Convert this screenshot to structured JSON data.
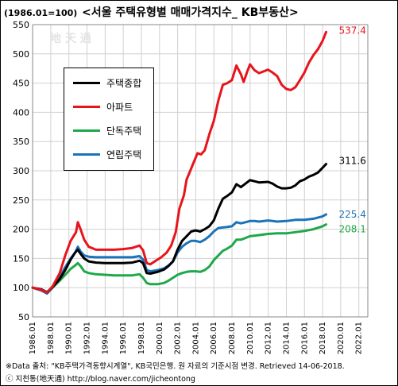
{
  "header": {
    "unit_label": "(1986.01=100)",
    "title": "<서울 주택유형별 매매가격지수_ KB부동산>"
  },
  "watermark": "地 天 通",
  "footer": {
    "source": "※Data 출처: \"KB주택가격동향시계열\", KB국민은행. 원 자료의 기준시점 변경. Retrieved 14-06-2018.",
    "author": "ⓒ 지천통(地天通) http://blog.naver.com/jicheontong"
  },
  "chart_data": {
    "type": "line",
    "title": "<서울 주택유형별 매매가격지수_ KB부동산>",
    "xlabel": "",
    "ylabel": "(1986.01=100)",
    "xlim": [
      1986.0,
      2023.0
    ],
    "ylim": [
      50,
      550
    ],
    "y_ticks": [
      50,
      100,
      150,
      200,
      250,
      300,
      350,
      400,
      450,
      500,
      550
    ],
    "x_ticks": [
      "1986.01",
      "1988.01",
      "1990.01",
      "1992.01",
      "1994.01",
      "1996.01",
      "1998.01",
      "2000.01",
      "2002.01",
      "2004.01",
      "2006.01",
      "2008.01",
      "2010.01",
      "2012.01",
      "2014.01",
      "2016.01",
      "2018.01",
      "2020.01",
      "2022.01"
    ],
    "grid": true,
    "legend_position": "upper-left",
    "series": [
      {
        "name": "주택종합",
        "color": "#000000",
        "end_label": "311.6",
        "points": [
          [
            1986.0,
            100
          ],
          [
            1987.0,
            97
          ],
          [
            1987.6,
            92
          ],
          [
            1988.2,
            101
          ],
          [
            1989.0,
            115
          ],
          [
            1989.6,
            130
          ],
          [
            1990.2,
            148
          ],
          [
            1990.7,
            160
          ],
          [
            1991.0,
            165
          ],
          [
            1991.3,
            158
          ],
          [
            1991.7,
            150
          ],
          [
            1992.2,
            145
          ],
          [
            1993.0,
            143
          ],
          [
            1994.0,
            142
          ],
          [
            1995.0,
            142
          ],
          [
            1996.0,
            142
          ],
          [
            1997.0,
            143
          ],
          [
            1997.8,
            146
          ],
          [
            1998.2,
            142
          ],
          [
            1998.6,
            125
          ],
          [
            1999.0,
            124
          ],
          [
            1999.8,
            127
          ],
          [
            2000.5,
            131
          ],
          [
            2001.0,
            137
          ],
          [
            2001.5,
            145
          ],
          [
            2002.0,
            165
          ],
          [
            2002.5,
            180
          ],
          [
            2003.0,
            188
          ],
          [
            2003.5,
            196
          ],
          [
            2004.0,
            198
          ],
          [
            2004.5,
            196
          ],
          [
            2005.0,
            200
          ],
          [
            2005.5,
            205
          ],
          [
            2006.0,
            215
          ],
          [
            2006.5,
            235
          ],
          [
            2007.0,
            252
          ],
          [
            2007.5,
            257
          ],
          [
            2008.0,
            263
          ],
          [
            2008.5,
            277
          ],
          [
            2009.0,
            272
          ],
          [
            2009.5,
            278
          ],
          [
            2010.0,
            284
          ],
          [
            2010.5,
            282
          ],
          [
            2011.0,
            280
          ],
          [
            2012.0,
            281
          ],
          [
            2012.5,
            278
          ],
          [
            2013.0,
            273
          ],
          [
            2013.5,
            270
          ],
          [
            2014.0,
            270
          ],
          [
            2014.5,
            271
          ],
          [
            2015.0,
            275
          ],
          [
            2015.5,
            282
          ],
          [
            2016.0,
            285
          ],
          [
            2016.5,
            290
          ],
          [
            2017.0,
            293
          ],
          [
            2017.5,
            297
          ],
          [
            2018.0,
            305
          ],
          [
            2018.4,
            311.6
          ]
        ]
      },
      {
        "name": "아파트",
        "color": "#e8141b",
        "end_label": "537.4",
        "points": [
          [
            1986.0,
            100
          ],
          [
            1987.0,
            96
          ],
          [
            1987.6,
            92
          ],
          [
            1988.2,
            102
          ],
          [
            1989.0,
            125
          ],
          [
            1989.6,
            155
          ],
          [
            1990.2,
            180
          ],
          [
            1990.8,
            195
          ],
          [
            1991.0,
            212
          ],
          [
            1991.3,
            200
          ],
          [
            1991.7,
            182
          ],
          [
            1992.2,
            170
          ],
          [
            1993.0,
            165
          ],
          [
            1994.0,
            165
          ],
          [
            1995.0,
            165
          ],
          [
            1996.0,
            166
          ],
          [
            1997.0,
            168
          ],
          [
            1997.8,
            172
          ],
          [
            1998.2,
            164
          ],
          [
            1998.6,
            142
          ],
          [
            1999.0,
            140
          ],
          [
            1999.6,
            146
          ],
          [
            2000.2,
            152
          ],
          [
            2000.8,
            160
          ],
          [
            2001.3,
            172
          ],
          [
            2001.8,
            195
          ],
          [
            2002.2,
            235
          ],
          [
            2002.7,
            258
          ],
          [
            2003.0,
            285
          ],
          [
            2003.4,
            300
          ],
          [
            2003.8,
            315
          ],
          [
            2004.2,
            330
          ],
          [
            2004.6,
            328
          ],
          [
            2005.0,
            335
          ],
          [
            2005.5,
            362
          ],
          [
            2006.0,
            385
          ],
          [
            2006.5,
            420
          ],
          [
            2007.0,
            447
          ],
          [
            2007.5,
            450
          ],
          [
            2008.0,
            455
          ],
          [
            2008.5,
            480
          ],
          [
            2009.0,
            465
          ],
          [
            2009.3,
            452
          ],
          [
            2009.7,
            470
          ],
          [
            2010.0,
            482
          ],
          [
            2010.5,
            472
          ],
          [
            2011.0,
            467
          ],
          [
            2011.5,
            470
          ],
          [
            2012.0,
            473
          ],
          [
            2012.5,
            468
          ],
          [
            2013.0,
            462
          ],
          [
            2013.5,
            447
          ],
          [
            2014.0,
            440
          ],
          [
            2014.5,
            438
          ],
          [
            2015.0,
            443
          ],
          [
            2015.5,
            455
          ],
          [
            2016.0,
            468
          ],
          [
            2016.5,
            485
          ],
          [
            2017.0,
            498
          ],
          [
            2017.5,
            508
          ],
          [
            2018.0,
            522
          ],
          [
            2018.4,
            537.4
          ]
        ]
      },
      {
        "name": "단독주택",
        "color": "#1fa84a",
        "end_label": "208.1",
        "points": [
          [
            1986.0,
            100
          ],
          [
            1987.0,
            96
          ],
          [
            1987.6,
            93
          ],
          [
            1988.2,
            100
          ],
          [
            1989.0,
            112
          ],
          [
            1989.6,
            122
          ],
          [
            1990.2,
            132
          ],
          [
            1990.7,
            138
          ],
          [
            1991.0,
            142
          ],
          [
            1991.3,
            137
          ],
          [
            1991.7,
            128
          ],
          [
            1992.2,
            125
          ],
          [
            1993.0,
            123
          ],
          [
            1994.0,
            122
          ],
          [
            1995.0,
            121
          ],
          [
            1996.0,
            121
          ],
          [
            1997.0,
            121
          ],
          [
            1997.8,
            123
          ],
          [
            1998.2,
            117
          ],
          [
            1998.6,
            108
          ],
          [
            1999.0,
            106
          ],
          [
            1999.8,
            106
          ],
          [
            2000.5,
            108
          ],
          [
            2001.0,
            112
          ],
          [
            2002.0,
            122
          ],
          [
            2002.5,
            125
          ],
          [
            2003.0,
            127
          ],
          [
            2003.5,
            128
          ],
          [
            2004.0,
            128
          ],
          [
            2004.5,
            127
          ],
          [
            2005.0,
            130
          ],
          [
            2005.5,
            136
          ],
          [
            2006.0,
            147
          ],
          [
            2006.5,
            155
          ],
          [
            2007.0,
            163
          ],
          [
            2007.5,
            167
          ],
          [
            2008.0,
            172
          ],
          [
            2008.5,
            182
          ],
          [
            2009.0,
            182
          ],
          [
            2009.5,
            185
          ],
          [
            2010.0,
            188
          ],
          [
            2010.5,
            189
          ],
          [
            2011.0,
            190
          ],
          [
            2012.0,
            192
          ],
          [
            2013.0,
            193
          ],
          [
            2014.0,
            193
          ],
          [
            2015.0,
            195
          ],
          [
            2016.0,
            197
          ],
          [
            2017.0,
            200
          ],
          [
            2018.0,
            205
          ],
          [
            2018.4,
            208.1
          ]
        ]
      },
      {
        "name": "연립주택",
        "color": "#1a73b9",
        "end_label": "225.4",
        "points": [
          [
            1986.0,
            100
          ],
          [
            1987.0,
            95
          ],
          [
            1987.6,
            90
          ],
          [
            1988.2,
            100
          ],
          [
            1989.0,
            118
          ],
          [
            1989.6,
            135
          ],
          [
            1990.2,
            150
          ],
          [
            1990.7,
            160
          ],
          [
            1991.0,
            170
          ],
          [
            1991.3,
            162
          ],
          [
            1991.7,
            155
          ],
          [
            1992.2,
            153
          ],
          [
            1993.0,
            152
          ],
          [
            1994.0,
            152
          ],
          [
            1995.0,
            152
          ],
          [
            1996.0,
            152
          ],
          [
            1997.0,
            152
          ],
          [
            1997.8,
            154
          ],
          [
            1998.2,
            148
          ],
          [
            1998.6,
            130
          ],
          [
            1999.0,
            128
          ],
          [
            1999.8,
            130
          ],
          [
            2000.5,
            133
          ],
          [
            2001.0,
            138
          ],
          [
            2001.5,
            145
          ],
          [
            2002.0,
            160
          ],
          [
            2002.5,
            170
          ],
          [
            2003.0,
            176
          ],
          [
            2003.5,
            180
          ],
          [
            2004.0,
            180
          ],
          [
            2004.5,
            178
          ],
          [
            2005.0,
            182
          ],
          [
            2005.5,
            188
          ],
          [
            2006.0,
            196
          ],
          [
            2006.5,
            202
          ],
          [
            2007.0,
            203
          ],
          [
            2007.5,
            204
          ],
          [
            2008.0,
            205
          ],
          [
            2008.5,
            212
          ],
          [
            2009.0,
            210
          ],
          [
            2009.5,
            212
          ],
          [
            2010.0,
            214
          ],
          [
            2010.5,
            214
          ],
          [
            2011.0,
            213
          ],
          [
            2012.0,
            215
          ],
          [
            2012.5,
            214
          ],
          [
            2013.0,
            213
          ],
          [
            2014.0,
            214
          ],
          [
            2015.0,
            216
          ],
          [
            2016.0,
            216
          ],
          [
            2017.0,
            218
          ],
          [
            2018.0,
            222
          ],
          [
            2018.4,
            225.4
          ]
        ]
      }
    ]
  }
}
